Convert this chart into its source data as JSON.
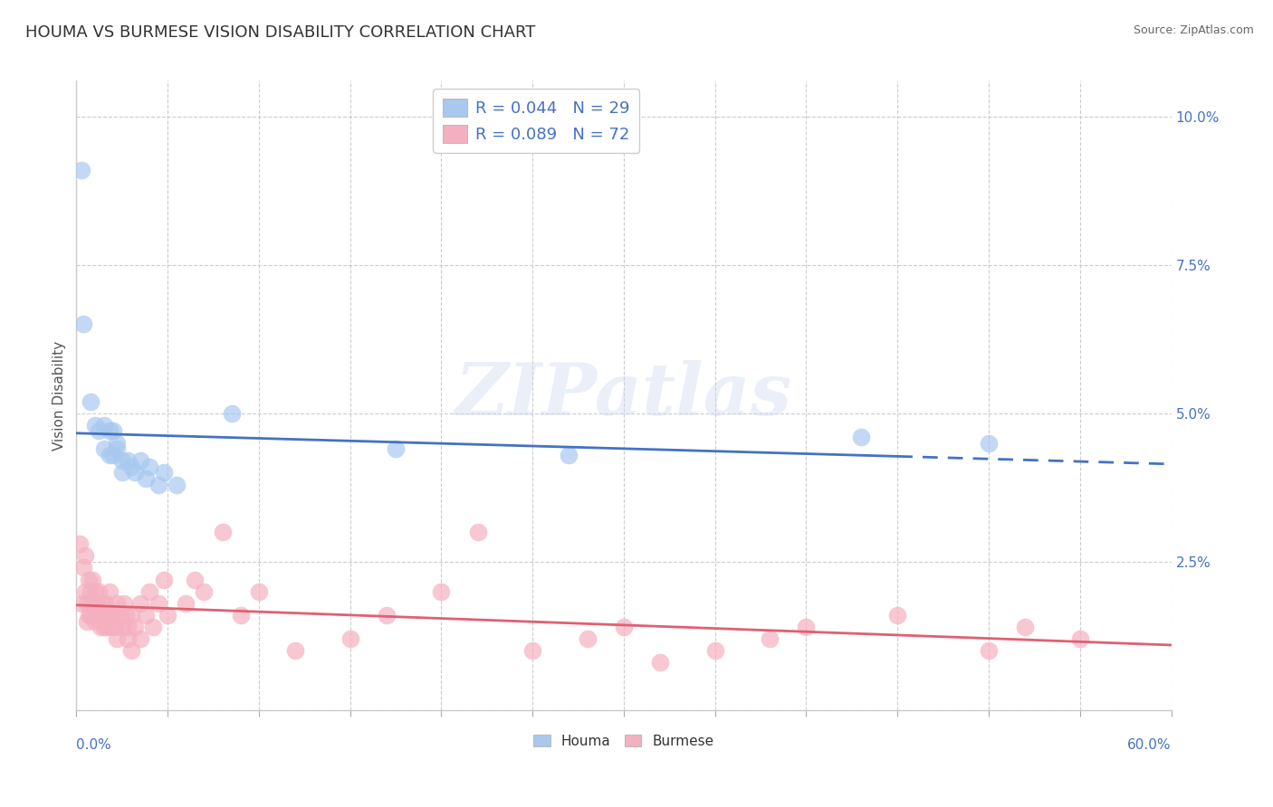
{
  "title": "HOUMA VS BURMESE VISION DISABILITY CORRELATION CHART",
  "source": "Source: ZipAtlas.com",
  "ylabel": "Vision Disability",
  "xlim": [
    0.0,
    0.6
  ],
  "ylim": [
    0.0,
    0.106
  ],
  "yticks": [
    0.0,
    0.025,
    0.05,
    0.075,
    0.1
  ],
  "ytick_labels": [
    "",
    "2.5%",
    "5.0%",
    "7.5%",
    "10.0%"
  ],
  "legend_houma_R": "0.044",
  "legend_houma_N": "29",
  "legend_burmese_R": "0.089",
  "legend_burmese_N": "72",
  "houma_color": "#a8c8f0",
  "burmese_color": "#f5b0c0",
  "houma_line_color": "#4472c4",
  "burmese_line_color": "#e06070",
  "background_color": "#ffffff",
  "houma_x": [
    0.003,
    0.004,
    0.008,
    0.01,
    0.012,
    0.015,
    0.015,
    0.018,
    0.018,
    0.02,
    0.02,
    0.022,
    0.022,
    0.025,
    0.025,
    0.028,
    0.03,
    0.032,
    0.035,
    0.038,
    0.04,
    0.045,
    0.048,
    0.055,
    0.085,
    0.175,
    0.27,
    0.43,
    0.5
  ],
  "houma_y": [
    0.091,
    0.065,
    0.052,
    0.048,
    0.047,
    0.048,
    0.044,
    0.043,
    0.047,
    0.047,
    0.043,
    0.045,
    0.044,
    0.042,
    0.04,
    0.042,
    0.041,
    0.04,
    0.042,
    0.039,
    0.041,
    0.038,
    0.04,
    0.038,
    0.05,
    0.044,
    0.043,
    0.046,
    0.045
  ],
  "burmese_x": [
    0.002,
    0.003,
    0.004,
    0.005,
    0.005,
    0.006,
    0.006,
    0.007,
    0.007,
    0.008,
    0.008,
    0.009,
    0.009,
    0.01,
    0.01,
    0.011,
    0.012,
    0.012,
    0.013,
    0.013,
    0.014,
    0.015,
    0.015,
    0.016,
    0.016,
    0.017,
    0.018,
    0.018,
    0.019,
    0.02,
    0.021,
    0.022,
    0.022,
    0.024,
    0.025,
    0.026,
    0.027,
    0.028,
    0.028,
    0.03,
    0.03,
    0.032,
    0.035,
    0.035,
    0.038,
    0.04,
    0.042,
    0.045,
    0.048,
    0.05,
    0.06,
    0.065,
    0.07,
    0.08,
    0.09,
    0.1,
    0.12,
    0.15,
    0.17,
    0.2,
    0.22,
    0.25,
    0.28,
    0.3,
    0.32,
    0.35,
    0.38,
    0.4,
    0.45,
    0.5,
    0.52,
    0.55
  ],
  "burmese_y": [
    0.028,
    0.018,
    0.024,
    0.026,
    0.02,
    0.018,
    0.015,
    0.016,
    0.022,
    0.02,
    0.016,
    0.018,
    0.022,
    0.02,
    0.015,
    0.018,
    0.016,
    0.02,
    0.016,
    0.014,
    0.018,
    0.014,
    0.016,
    0.018,
    0.014,
    0.016,
    0.016,
    0.02,
    0.014,
    0.016,
    0.014,
    0.012,
    0.018,
    0.016,
    0.014,
    0.018,
    0.016,
    0.014,
    0.012,
    0.016,
    0.01,
    0.014,
    0.018,
    0.012,
    0.016,
    0.02,
    0.014,
    0.018,
    0.022,
    0.016,
    0.018,
    0.022,
    0.02,
    0.03,
    0.016,
    0.02,
    0.01,
    0.012,
    0.016,
    0.02,
    0.03,
    0.01,
    0.012,
    0.014,
    0.008,
    0.01,
    0.012,
    0.014,
    0.016,
    0.01,
    0.014,
    0.012
  ],
  "title_fontsize": 13,
  "axis_label_fontsize": 11,
  "tick_fontsize": 11,
  "legend_fontsize": 13
}
